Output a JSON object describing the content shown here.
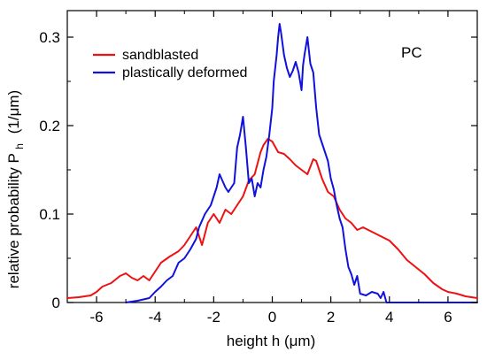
{
  "chart_data": {
    "type": "line",
    "title": "",
    "annotation": "PC",
    "xlabel": "height h  (μm)",
    "ylabel": "relative probability P",
    "ylabel_sub": "h",
    "ylabel_unit": "(1/μm)",
    "xlim": [
      -7,
      7
    ],
    "ylim": [
      0,
      0.33
    ],
    "xticks": [
      -6,
      -4,
      -2,
      0,
      2,
      4,
      6
    ],
    "yticks": [
      0,
      0.1,
      0.2,
      0.3
    ],
    "ytick_labels": [
      "0",
      "0.1",
      "0.2",
      "0.3"
    ],
    "xtick_labels": [
      "-6",
      "-4",
      "-2",
      "0",
      "2",
      "4",
      "6"
    ],
    "grid": false,
    "legend_position": "top-left",
    "series": [
      {
        "name": "sandblasted",
        "color": "#ee1111",
        "points": [
          [
            -7.0,
            0.005
          ],
          [
            -6.6,
            0.006
          ],
          [
            -6.2,
            0.008
          ],
          [
            -6.0,
            0.012
          ],
          [
            -5.8,
            0.018
          ],
          [
            -5.5,
            0.022
          ],
          [
            -5.2,
            0.03
          ],
          [
            -5.0,
            0.033
          ],
          [
            -4.8,
            0.028
          ],
          [
            -4.6,
            0.025
          ],
          [
            -4.4,
            0.03
          ],
          [
            -4.2,
            0.025
          ],
          [
            -4.0,
            0.035
          ],
          [
            -3.8,
            0.045
          ],
          [
            -3.5,
            0.052
          ],
          [
            -3.2,
            0.058
          ],
          [
            -3.0,
            0.065
          ],
          [
            -2.8,
            0.075
          ],
          [
            -2.6,
            0.085
          ],
          [
            -2.4,
            0.065
          ],
          [
            -2.2,
            0.09
          ],
          [
            -2.0,
            0.1
          ],
          [
            -1.8,
            0.09
          ],
          [
            -1.6,
            0.105
          ],
          [
            -1.4,
            0.1
          ],
          [
            -1.2,
            0.11
          ],
          [
            -1.0,
            0.12
          ],
          [
            -0.8,
            0.138
          ],
          [
            -0.6,
            0.145
          ],
          [
            -0.4,
            0.17
          ],
          [
            -0.3,
            0.178
          ],
          [
            -0.15,
            0.185
          ],
          [
            0.0,
            0.182
          ],
          [
            0.2,
            0.17
          ],
          [
            0.4,
            0.168
          ],
          [
            0.6,
            0.162
          ],
          [
            0.8,
            0.155
          ],
          [
            1.0,
            0.15
          ],
          [
            1.2,
            0.145
          ],
          [
            1.4,
            0.162
          ],
          [
            1.5,
            0.16
          ],
          [
            1.7,
            0.14
          ],
          [
            1.9,
            0.125
          ],
          [
            2.1,
            0.12
          ],
          [
            2.3,
            0.105
          ],
          [
            2.5,
            0.095
          ],
          [
            2.7,
            0.09
          ],
          [
            2.9,
            0.082
          ],
          [
            3.1,
            0.085
          ],
          [
            3.4,
            0.08
          ],
          [
            3.7,
            0.075
          ],
          [
            4.0,
            0.07
          ],
          [
            4.3,
            0.06
          ],
          [
            4.6,
            0.048
          ],
          [
            4.9,
            0.04
          ],
          [
            5.2,
            0.032
          ],
          [
            5.5,
            0.022
          ],
          [
            5.8,
            0.015
          ],
          [
            6.0,
            0.012
          ],
          [
            6.3,
            0.01
          ],
          [
            6.6,
            0.007
          ],
          [
            7.0,
            0.005
          ]
        ]
      },
      {
        "name": "plastically deformed",
        "color": "#1111dd",
        "points": [
          [
            -5.0,
            0.0
          ],
          [
            -4.6,
            0.002
          ],
          [
            -4.2,
            0.005
          ],
          [
            -4.0,
            0.012
          ],
          [
            -3.8,
            0.018
          ],
          [
            -3.6,
            0.025
          ],
          [
            -3.4,
            0.03
          ],
          [
            -3.2,
            0.045
          ],
          [
            -3.0,
            0.05
          ],
          [
            -2.8,
            0.06
          ],
          [
            -2.6,
            0.072
          ],
          [
            -2.5,
            0.085
          ],
          [
            -2.3,
            0.1
          ],
          [
            -2.1,
            0.11
          ],
          [
            -2.0,
            0.12
          ],
          [
            -1.9,
            0.13
          ],
          [
            -1.8,
            0.145
          ],
          [
            -1.6,
            0.13
          ],
          [
            -1.5,
            0.125
          ],
          [
            -1.3,
            0.135
          ],
          [
            -1.2,
            0.175
          ],
          [
            -1.1,
            0.19
          ],
          [
            -1.0,
            0.21
          ],
          [
            -0.9,
            0.175
          ],
          [
            -0.8,
            0.135
          ],
          [
            -0.7,
            0.14
          ],
          [
            -0.6,
            0.12
          ],
          [
            -0.5,
            0.135
          ],
          [
            -0.4,
            0.13
          ],
          [
            -0.3,
            0.15
          ],
          [
            -0.2,
            0.165
          ],
          [
            -0.1,
            0.19
          ],
          [
            0.0,
            0.22
          ],
          [
            0.05,
            0.25
          ],
          [
            0.1,
            0.265
          ],
          [
            0.15,
            0.28
          ],
          [
            0.2,
            0.3
          ],
          [
            0.25,
            0.315
          ],
          [
            0.3,
            0.305
          ],
          [
            0.4,
            0.28
          ],
          [
            0.5,
            0.265
          ],
          [
            0.6,
            0.255
          ],
          [
            0.7,
            0.262
          ],
          [
            0.8,
            0.272
          ],
          [
            0.9,
            0.26
          ],
          [
            1.0,
            0.24
          ],
          [
            1.05,
            0.268
          ],
          [
            1.1,
            0.28
          ],
          [
            1.2,
            0.3
          ],
          [
            1.3,
            0.27
          ],
          [
            1.4,
            0.26
          ],
          [
            1.5,
            0.22
          ],
          [
            1.6,
            0.19
          ],
          [
            1.7,
            0.18
          ],
          [
            1.8,
            0.17
          ],
          [
            1.9,
            0.16
          ],
          [
            2.0,
            0.14
          ],
          [
            2.1,
            0.128
          ],
          [
            2.2,
            0.11
          ],
          [
            2.3,
            0.095
          ],
          [
            2.4,
            0.085
          ],
          [
            2.5,
            0.06
          ],
          [
            2.6,
            0.04
          ],
          [
            2.7,
            0.032
          ],
          [
            2.8,
            0.02
          ],
          [
            2.9,
            0.03
          ],
          [
            3.0,
            0.01
          ],
          [
            3.2,
            0.008
          ],
          [
            3.4,
            0.012
          ],
          [
            3.6,
            0.01
          ],
          [
            3.7,
            0.005
          ],
          [
            3.8,
            0.012
          ],
          [
            3.9,
            0.0
          ],
          [
            4.2,
            0.0
          ],
          [
            7.0,
            0.0
          ]
        ]
      }
    ]
  }
}
